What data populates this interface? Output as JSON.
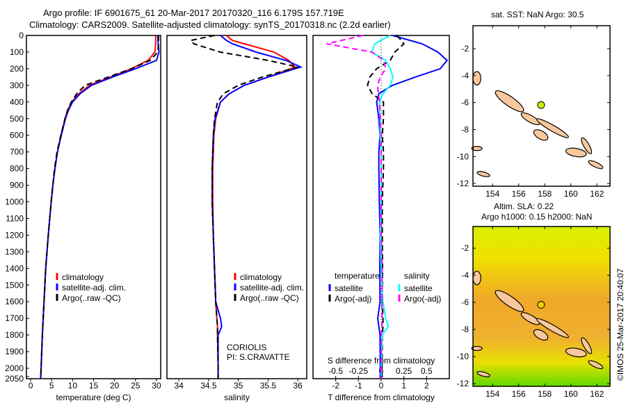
{
  "title_line1": "Argo profile: IF 6901675_61 20-Mar-2017 20170320_116 6.179S 157.719E",
  "title_line2": "Climatology: CARS2009. Satellite-adjusted climatology: synTS_20170318.nc (2.2d earlier)",
  "colors": {
    "climatology": "#ff0000",
    "satellite": "#0000ff",
    "argo": "#000000",
    "sal_satellite": "#00ffff",
    "sal_argo": "#ff00ff",
    "land": "#f8c89c",
    "float_marker": "#c8f000"
  },
  "chart_data": [
    {
      "type": "line",
      "xlabel": "temperature (deg C)",
      "ylabel": "",
      "xlim": [
        -1,
        31
      ],
      "ylim": [
        2150,
        0
      ],
      "xticks": [
        0,
        5,
        10,
        15,
        20,
        25,
        30
      ],
      "yticks": [
        0,
        100,
        200,
        300,
        400,
        500,
        600,
        700,
        800,
        900,
        1000,
        1100,
        1200,
        1300,
        1400,
        1500,
        1600,
        1700,
        1800,
        1900,
        2000,
        2050
      ],
      "depth": [
        0,
        50,
        100,
        150,
        200,
        250,
        300,
        350,
        400,
        450,
        500,
        600,
        700,
        800,
        900,
        1000,
        1200,
        1400,
        1600,
        1800,
        2000,
        2150
      ],
      "series": [
        {
          "name": "climatology",
          "style": "solid",
          "values": [
            29.8,
            29.8,
            29.6,
            28,
            24,
            19,
            14,
            11.5,
            9.8,
            8.8,
            8.2,
            7.2,
            6.4,
            5.8,
            5.3,
            4.9,
            4.2,
            3.6,
            3.2,
            2.8,
            2.5,
            2.4
          ]
        },
        {
          "name": "satellite-adj. clim.",
          "style": "solid",
          "values": [
            30.3,
            30.4,
            30.6,
            30,
            25,
            19.5,
            14.5,
            11.8,
            10,
            9,
            8.3,
            7.3,
            6.4,
            5.8,
            5.3,
            4.9,
            4.2,
            3.6,
            3.2,
            2.8,
            2.5,
            2.4
          ]
        },
        {
          "name": "Argo(..raw -QC)",
          "style": "dashed",
          "values": [
            30.5,
            30.5,
            30.3,
            28.5,
            24,
            18.5,
            13,
            11,
            9.7,
            8.8,
            8.2,
            7.2,
            6.3,
            5.7,
            5.3,
            4.9,
            4.2,
            3.6,
            3.2,
            2.8,
            2.5,
            2.4
          ]
        }
      ],
      "legend": [
        "climatology",
        "satellite-adj. clim.",
        "Argo(..raw -QC)"
      ]
    },
    {
      "type": "line",
      "xlabel": "salinity",
      "ylabel": "",
      "xlim": [
        33.8,
        36.15
      ],
      "ylim": [
        2150,
        0
      ],
      "xticks": [
        34,
        34.5,
        35,
        35.5,
        36
      ],
      "depth": [
        0,
        30,
        50,
        100,
        150,
        190,
        250,
        300,
        350,
        400,
        500,
        600,
        800,
        1000,
        1200,
        1400,
        1600,
        1700,
        1750,
        1800,
        2000,
        2150
      ],
      "series": [
        {
          "name": "climatology",
          "style": "solid",
          "values": [
            34.8,
            34.9,
            35.1,
            35.6,
            35.85,
            35.95,
            35.5,
            35.1,
            34.85,
            34.7,
            34.62,
            34.59,
            34.57,
            34.57,
            34.58,
            34.6,
            34.62,
            34.64,
            34.65,
            34.65,
            34.66,
            34.66
          ]
        },
        {
          "name": "satellite-adj. clim.",
          "style": "solid",
          "values": [
            34.7,
            34.8,
            34.9,
            35.3,
            35.8,
            36.05,
            35.5,
            35.1,
            34.85,
            34.7,
            34.61,
            34.58,
            34.56,
            34.56,
            34.58,
            34.6,
            34.62,
            34.7,
            34.72,
            34.66,
            34.66,
            34.66
          ]
        },
        {
          "name": "Argo(..raw -QC)",
          "style": "dashed",
          "values": [
            34.6,
            34.2,
            34.25,
            34.7,
            35.5,
            36.0,
            35.4,
            35.0,
            34.75,
            34.65,
            34.6,
            34.58,
            34.56,
            34.56,
            34.58,
            34.6,
            34.62,
            34.64,
            34.65,
            34.65,
            34.66,
            34.66
          ]
        }
      ],
      "legend": [
        "climatology",
        "satellite-adj. clim.",
        "Argo(..raw -QC)"
      ],
      "annotation": [
        "CORIOLIS",
        "PI: S.CRAVATTE"
      ]
    },
    {
      "type": "line",
      "xlabel": "T difference from climatology",
      "x2label": "S difference from climatology",
      "xlim": [
        -3,
        3
      ],
      "x2lim": [
        -0.75,
        0.75
      ],
      "ylim": [
        2150,
        0
      ],
      "xticks": [
        -2,
        -1,
        0,
        1,
        2
      ],
      "x2ticks": [
        -0.5,
        -0.25,
        0,
        0.25,
        0.5
      ],
      "depth": [
        0,
        50,
        100,
        150,
        200,
        250,
        300,
        350,
        400,
        500,
        600,
        700,
        800,
        1000,
        1200,
        1400,
        1600,
        1700,
        1750,
        1800,
        2000,
        2150
      ],
      "series": [
        {
          "name": "temperature satellite",
          "axis": "T",
          "style": "solid",
          "values": [
            0.5,
            1.8,
            2.5,
            2.9,
            2.6,
            1.5,
            0.5,
            -0.1,
            -0.2,
            -0.1,
            -0.05,
            -0.1,
            -0.1,
            -0.08,
            -0.05,
            -0.06,
            -0.05,
            -0.15,
            -0.1,
            -0.05,
            -0.04,
            -0.04
          ]
        },
        {
          "name": "temperature Argo(-adj)",
          "axis": "T",
          "style": "dashed",
          "values": [
            0.7,
            1.0,
            0.6,
            0.4,
            -0.2,
            -0.5,
            -0.6,
            -0.4,
            0.1,
            0.1,
            0.05,
            0.1,
            0.1,
            0.05,
            0.05,
            0.06,
            0.05,
            0.08,
            0.08,
            0.05,
            0.04,
            0.04
          ]
        },
        {
          "name": "salinity satellite",
          "axis": "S",
          "style": "solid",
          "values": [
            0.1,
            -0.07,
            -0.1,
            0.05,
            0.1,
            0.13,
            0.1,
            0.02,
            -0.02,
            -0.01,
            -0.01,
            0,
            0,
            0,
            -0.01,
            0,
            0.02,
            0.05,
            0.08,
            0.01,
            0,
            0
          ]
        },
        {
          "name": "salinity Argo(-adj)",
          "axis": "S",
          "style": "dashed",
          "values": [
            -0.2,
            -0.6,
            -0.1,
            0.03,
            0.05,
            -0.01,
            -0.04,
            -0.03,
            -0.02,
            -0.01,
            0,
            0,
            0,
            0,
            0,
            0.01,
            0.01,
            0.01,
            0.01,
            0,
            0,
            0
          ]
        }
      ],
      "legend": {
        "temperature_title": "temperature",
        "salinity_title": "salinity",
        "items": [
          "satellite",
          "Argo(-adj)",
          "satellite",
          "Argo(-adj)"
        ]
      }
    },
    {
      "type": "map",
      "title": "sat. SST: NaN Argo: 30.5",
      "lon_range": [
        152.5,
        163
      ],
      "lat_range": [
        -12.2,
        -0.3
      ],
      "xticks": [
        154,
        156,
        158,
        160,
        162
      ],
      "yticks": [
        -2,
        -4,
        -6,
        -8,
        -10,
        -12
      ],
      "float_position": [
        157.719,
        -6.179
      ]
    },
    {
      "type": "map",
      "title_line1": "Altim. SLA: 0.22",
      "title_line2": "Argo h1000: 0.15 h2000: NaN",
      "lon_range": [
        152.5,
        163
      ],
      "lat_range": [
        -12.2,
        -0.4
      ],
      "xticks": [
        154,
        156,
        158,
        160,
        162
      ],
      "yticks": [
        -2,
        -4,
        -6,
        -8,
        -10,
        -12
      ],
      "float_position": [
        157.719,
        -6.179
      ]
    }
  ],
  "credit": "©IMOS 25-Mar-2017 20:40:07"
}
